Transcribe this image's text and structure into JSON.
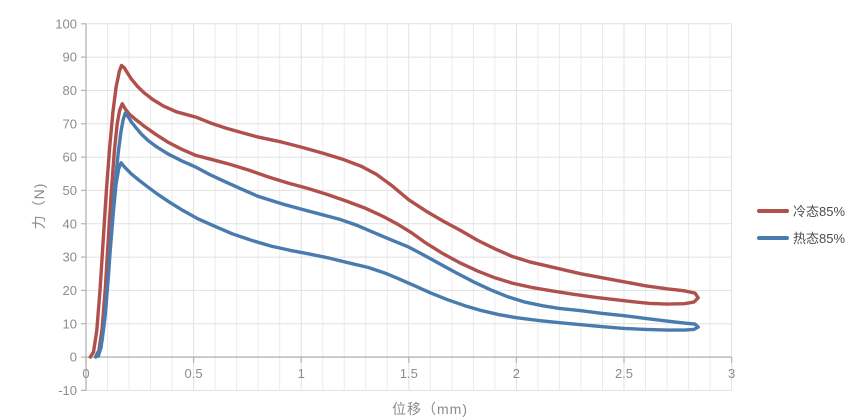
{
  "chart_data": {
    "type": "line",
    "title": "",
    "xlabel": "位移（mm)",
    "ylabel": "力（N)",
    "xlim": [
      0,
      3
    ],
    "ylim": [
      -10,
      100
    ],
    "x_tick_values": [
      0,
      0.5,
      1,
      1.5,
      2,
      2.5,
      3
    ],
    "x_tick_labels": [
      "0",
      "0.5",
      "1",
      "1.5",
      "2",
      "2.5",
      "3"
    ],
    "y_tick_values": [
      100,
      90,
      80,
      70,
      60,
      50,
      40,
      30,
      20,
      10,
      0,
      -10
    ],
    "y_tick_labels": [
      "100",
      "90",
      "80",
      "70",
      "60",
      "50",
      "40",
      "30",
      "20",
      "10",
      "0",
      "-10"
    ],
    "x_minor_step": 0.1,
    "grid": "on",
    "legend_position": "right",
    "colors": {
      "grid_minor": "#ebebeb",
      "grid_major": "#e1e1e1",
      "axis": "#b3b3b3",
      "tick_text": "#8c8c8c"
    },
    "series": [
      {
        "name": "冷态85%",
        "color": "#b0504c",
        "description": "closed loop: forward stroke rising to peak ~87.5 N then decaying, return stroke with secondary peak ~76 N",
        "points": [
          [
            0.02,
            0
          ],
          [
            0.035,
            1.5
          ],
          [
            0.05,
            8
          ],
          [
            0.065,
            20
          ],
          [
            0.08,
            35
          ],
          [
            0.095,
            50
          ],
          [
            0.11,
            63
          ],
          [
            0.125,
            73.5
          ],
          [
            0.14,
            81
          ],
          [
            0.155,
            85.8
          ],
          [
            0.165,
            87.5
          ],
          [
            0.178,
            86.8
          ],
          [
            0.19,
            85.5
          ],
          [
            0.21,
            83.5
          ],
          [
            0.24,
            81.2
          ],
          [
            0.27,
            79.3
          ],
          [
            0.31,
            77.3
          ],
          [
            0.36,
            75.3
          ],
          [
            0.42,
            73.6
          ],
          [
            0.51,
            72
          ],
          [
            0.58,
            70.2
          ],
          [
            0.65,
            68.7
          ],
          [
            0.72,
            67.4
          ],
          [
            0.8,
            66
          ],
          [
            0.91,
            64.5
          ],
          [
            1.0,
            63
          ],
          [
            1.1,
            61.2
          ],
          [
            1.2,
            59.2
          ],
          [
            1.28,
            57.2
          ],
          [
            1.35,
            54.8
          ],
          [
            1.42,
            51.5
          ],
          [
            1.5,
            47.2
          ],
          [
            1.58,
            43.8
          ],
          [
            1.66,
            40.8
          ],
          [
            1.74,
            38
          ],
          [
            1.82,
            35
          ],
          [
            1.9,
            32.5
          ],
          [
            1.98,
            30.2
          ],
          [
            2.06,
            28.6
          ],
          [
            2.14,
            27.4
          ],
          [
            2.22,
            26.2
          ],
          [
            2.3,
            25
          ],
          [
            2.4,
            23.8
          ],
          [
            2.5,
            22.6
          ],
          [
            2.6,
            21.4
          ],
          [
            2.7,
            20.5
          ],
          [
            2.78,
            19.9
          ],
          [
            2.83,
            19.2
          ],
          [
            2.845,
            17.8
          ],
          [
            2.825,
            16.5
          ],
          [
            2.78,
            16
          ],
          [
            2.7,
            15.9
          ],
          [
            2.62,
            16.1
          ],
          [
            2.54,
            16.6
          ],
          [
            2.46,
            17.2
          ],
          [
            2.37,
            17.9
          ],
          [
            2.27,
            18.8
          ],
          [
            2.17,
            19.8
          ],
          [
            2.07,
            20.9
          ],
          [
            1.98,
            22.2
          ],
          [
            1.9,
            23.8
          ],
          [
            1.82,
            25.8
          ],
          [
            1.74,
            28.2
          ],
          [
            1.66,
            31
          ],
          [
            1.58,
            34.2
          ],
          [
            1.51,
            37.4
          ],
          [
            1.45,
            39.8
          ],
          [
            1.38,
            42.2
          ],
          [
            1.3,
            44.6
          ],
          [
            1.21,
            46.8
          ],
          [
            1.12,
            48.8
          ],
          [
            1.03,
            50.6
          ],
          [
            0.94,
            52.2
          ],
          [
            0.85,
            54
          ],
          [
            0.76,
            56
          ],
          [
            0.67,
            57.8
          ],
          [
            0.59,
            59.2
          ],
          [
            0.51,
            60.5
          ],
          [
            0.44,
            62.5
          ],
          [
            0.38,
            64.5
          ],
          [
            0.32,
            67
          ],
          [
            0.27,
            69.3
          ],
          [
            0.23,
            71.3
          ],
          [
            0.2,
            73
          ],
          [
            0.182,
            74.5
          ],
          [
            0.168,
            76
          ],
          [
            0.156,
            74
          ],
          [
            0.145,
            70
          ],
          [
            0.132,
            62
          ],
          [
            0.118,
            50
          ],
          [
            0.104,
            36
          ],
          [
            0.09,
            21
          ],
          [
            0.075,
            8.5
          ],
          [
            0.06,
            2
          ],
          [
            0.045,
            0.2
          ]
        ]
      },
      {
        "name": "热态85%",
        "color": "#4a7bae",
        "description": "closed loop: forward stroke rising to peak ~73 N then decaying, return stroke with secondary peak ~58 N",
        "points": [
          [
            0.045,
            0
          ],
          [
            0.06,
            1.2
          ],
          [
            0.075,
            5
          ],
          [
            0.09,
            13
          ],
          [
            0.105,
            25
          ],
          [
            0.12,
            39
          ],
          [
            0.135,
            52
          ],
          [
            0.15,
            61.5
          ],
          [
            0.162,
            67.5
          ],
          [
            0.172,
            71
          ],
          [
            0.182,
            73.2
          ],
          [
            0.195,
            72.2
          ],
          [
            0.21,
            70.6
          ],
          [
            0.235,
            68.6
          ],
          [
            0.26,
            66.7
          ],
          [
            0.29,
            64.9
          ],
          [
            0.33,
            63
          ],
          [
            0.38,
            61
          ],
          [
            0.44,
            59
          ],
          [
            0.51,
            57
          ],
          [
            0.58,
            54.6
          ],
          [
            0.65,
            52.5
          ],
          [
            0.72,
            50.5
          ],
          [
            0.8,
            48.2
          ],
          [
            0.91,
            46
          ],
          [
            1.0,
            44.4
          ],
          [
            1.1,
            42.7
          ],
          [
            1.18,
            41.3
          ],
          [
            1.26,
            39.5
          ],
          [
            1.34,
            37.3
          ],
          [
            1.42,
            35.1
          ],
          [
            1.5,
            33
          ],
          [
            1.57,
            30.6
          ],
          [
            1.64,
            28.1
          ],
          [
            1.72,
            25.3
          ],
          [
            1.8,
            22.6
          ],
          [
            1.88,
            20.2
          ],
          [
            1.96,
            18.1
          ],
          [
            2.04,
            16.5
          ],
          [
            2.12,
            15.4
          ],
          [
            2.2,
            14.6
          ],
          [
            2.3,
            13.9
          ],
          [
            2.4,
            13.1
          ],
          [
            2.5,
            12.4
          ],
          [
            2.6,
            11.6
          ],
          [
            2.7,
            10.8
          ],
          [
            2.78,
            10.2
          ],
          [
            2.83,
            9.9
          ],
          [
            2.845,
            9
          ],
          [
            2.825,
            8.3
          ],
          [
            2.78,
            8.1
          ],
          [
            2.7,
            8.1
          ],
          [
            2.6,
            8.3
          ],
          [
            2.5,
            8.6
          ],
          [
            2.4,
            9.1
          ],
          [
            2.3,
            9.7
          ],
          [
            2.2,
            10.3
          ],
          [
            2.1,
            11
          ],
          [
            2.0,
            11.8
          ],
          [
            1.92,
            12.7
          ],
          [
            1.84,
            13.9
          ],
          [
            1.76,
            15.4
          ],
          [
            1.68,
            17.2
          ],
          [
            1.6,
            19.3
          ],
          [
            1.53,
            21.3
          ],
          [
            1.46,
            23.3
          ],
          [
            1.39,
            25.2
          ],
          [
            1.31,
            26.9
          ],
          [
            1.22,
            28.3
          ],
          [
            1.13,
            29.7
          ],
          [
            1.04,
            30.9
          ],
          [
            0.95,
            32
          ],
          [
            0.86,
            33.3
          ],
          [
            0.77,
            35
          ],
          [
            0.68,
            37
          ],
          [
            0.6,
            39.2
          ],
          [
            0.52,
            41.5
          ],
          [
            0.45,
            44
          ],
          [
            0.39,
            46.4
          ],
          [
            0.33,
            49
          ],
          [
            0.28,
            51.4
          ],
          [
            0.24,
            53.4
          ],
          [
            0.21,
            55
          ],
          [
            0.19,
            56.3
          ],
          [
            0.175,
            57.3
          ],
          [
            0.163,
            58.3
          ],
          [
            0.152,
            56.5
          ],
          [
            0.14,
            52
          ],
          [
            0.128,
            44
          ],
          [
            0.114,
            33
          ],
          [
            0.1,
            21
          ],
          [
            0.085,
            10
          ],
          [
            0.07,
            3
          ],
          [
            0.057,
            0.3
          ]
        ]
      }
    ],
    "legend": {
      "items": [
        {
          "label": "冷态85%",
          "color": "#b0504c"
        },
        {
          "label": "热态85%",
          "color": "#4a7bae"
        }
      ]
    }
  }
}
